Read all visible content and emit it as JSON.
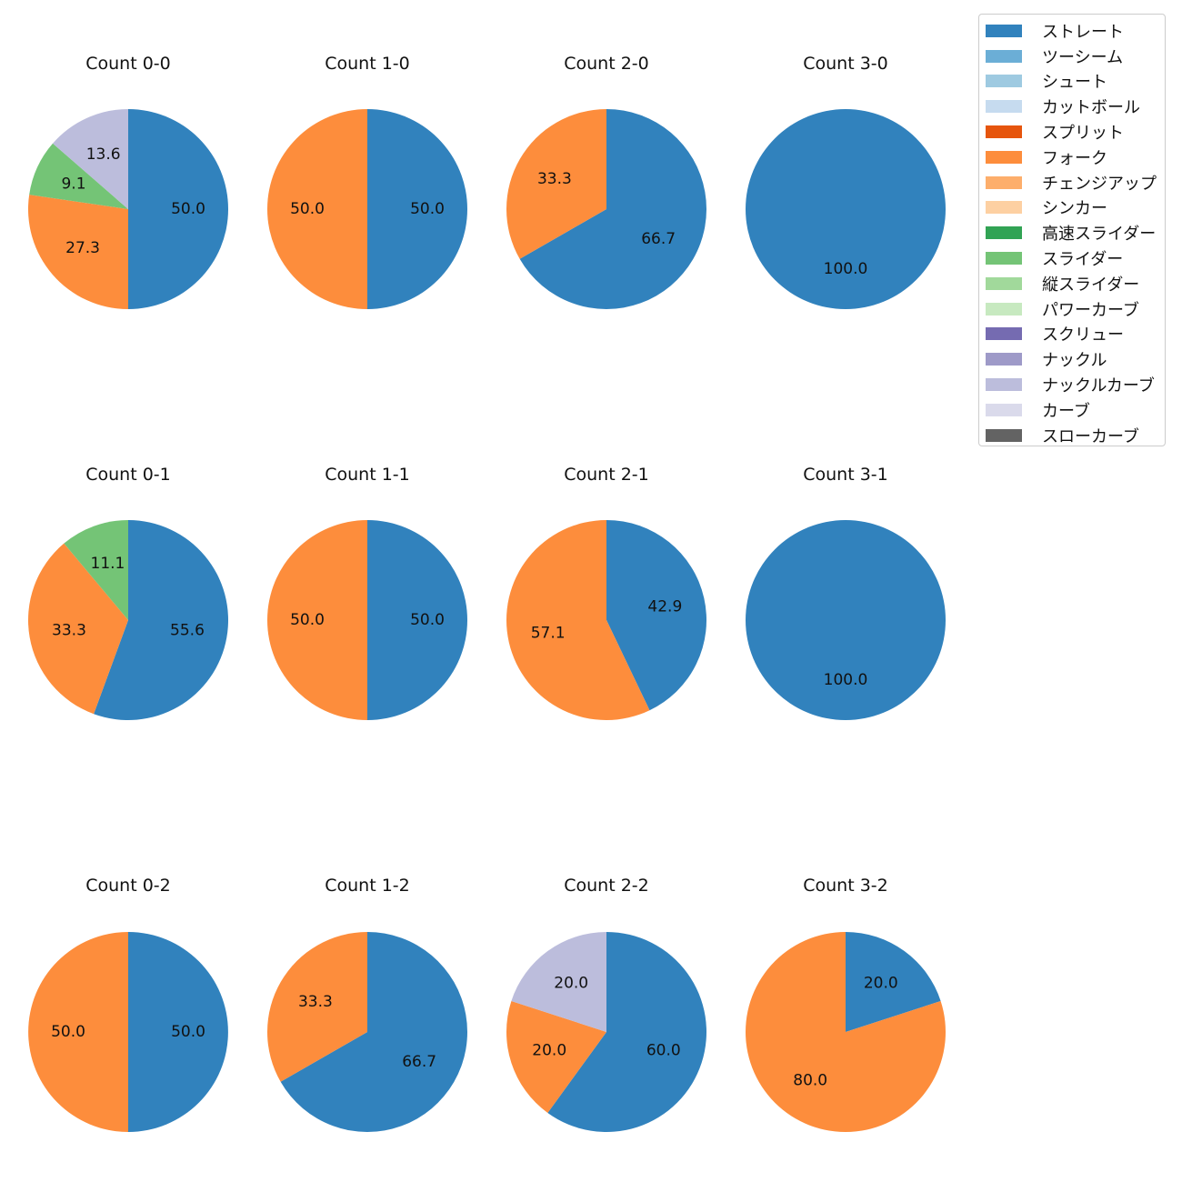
{
  "legend": {
    "items": [
      {
        "label": "ストレート",
        "color": "#3182bd"
      },
      {
        "label": "ツーシーム",
        "color": "#6baed6"
      },
      {
        "label": "シュート",
        "color": "#9ecae1"
      },
      {
        "label": "カットボール",
        "color": "#c6dbef"
      },
      {
        "label": "スプリット",
        "color": "#e6550d"
      },
      {
        "label": "フォーク",
        "color": "#fd8d3c"
      },
      {
        "label": "チェンジアップ",
        "color": "#fdae6b"
      },
      {
        "label": "シンカー",
        "color": "#fdd0a2"
      },
      {
        "label": "高速スライダー",
        "color": "#31a354"
      },
      {
        "label": "スライダー",
        "color": "#74c476"
      },
      {
        "label": "縦スライダー",
        "color": "#a1d99b"
      },
      {
        "label": "パワーカーブ",
        "color": "#c7e9c0"
      },
      {
        "label": "スクリュー",
        "color": "#756bb1"
      },
      {
        "label": "ナックル",
        "color": "#9e9ac8"
      },
      {
        "label": "ナックルカーブ",
        "color": "#bcbddc"
      },
      {
        "label": "カーブ",
        "color": "#dadaeb"
      },
      {
        "label": "スローカーブ",
        "color": "#636363"
      }
    ]
  },
  "chart_data": [
    {
      "type": "pie",
      "title": "Count 0-0",
      "slices": [
        {
          "category": "ストレート",
          "value": 50.0,
          "label": "50.0"
        },
        {
          "category": "フォーク",
          "value": 27.3,
          "label": "27.3"
        },
        {
          "category": "スライダー",
          "value": 9.1,
          "label": "9.1"
        },
        {
          "category": "ナックルカーブ",
          "value": 13.6,
          "label": "13.6"
        }
      ]
    },
    {
      "type": "pie",
      "title": "Count 1-0",
      "slices": [
        {
          "category": "ストレート",
          "value": 50.0,
          "label": "50.0"
        },
        {
          "category": "フォーク",
          "value": 50.0,
          "label": "50.0"
        }
      ]
    },
    {
      "type": "pie",
      "title": "Count 2-0",
      "slices": [
        {
          "category": "ストレート",
          "value": 66.7,
          "label": "66.7"
        },
        {
          "category": "フォーク",
          "value": 33.3,
          "label": "33.3"
        }
      ]
    },
    {
      "type": "pie",
      "title": "Count 3-0",
      "slices": [
        {
          "category": "ストレート",
          "value": 100.0,
          "label": "100.0"
        }
      ]
    },
    {
      "type": "pie",
      "title": "Count 0-1",
      "slices": [
        {
          "category": "ストレート",
          "value": 55.6,
          "label": "55.6"
        },
        {
          "category": "フォーク",
          "value": 33.3,
          "label": "33.3"
        },
        {
          "category": "スライダー",
          "value": 11.1,
          "label": "11.1"
        }
      ]
    },
    {
      "type": "pie",
      "title": "Count 1-1",
      "slices": [
        {
          "category": "ストレート",
          "value": 50.0,
          "label": "50.0"
        },
        {
          "category": "フォーク",
          "value": 50.0,
          "label": "50.0"
        }
      ]
    },
    {
      "type": "pie",
      "title": "Count 2-1",
      "slices": [
        {
          "category": "ストレート",
          "value": 42.9,
          "label": "42.9"
        },
        {
          "category": "フォーク",
          "value": 57.1,
          "label": "57.1"
        }
      ]
    },
    {
      "type": "pie",
      "title": "Count 3-1",
      "slices": [
        {
          "category": "ストレート",
          "value": 100.0,
          "label": "100.0"
        }
      ]
    },
    {
      "type": "pie",
      "title": "Count 0-2",
      "slices": [
        {
          "category": "ストレート",
          "value": 50.0,
          "label": "50.0"
        },
        {
          "category": "フォーク",
          "value": 50.0,
          "label": "50.0"
        }
      ]
    },
    {
      "type": "pie",
      "title": "Count 1-2",
      "slices": [
        {
          "category": "ストレート",
          "value": 66.7,
          "label": "66.7"
        },
        {
          "category": "フォーク",
          "value": 33.3,
          "label": "33.3"
        }
      ]
    },
    {
      "type": "pie",
      "title": "Count 2-2",
      "slices": [
        {
          "category": "ストレート",
          "value": 60.0,
          "label": "60.0"
        },
        {
          "category": "フォーク",
          "value": 20.0,
          "label": "20.0"
        },
        {
          "category": "ナックルカーブ",
          "value": 20.0,
          "label": "20.0"
        }
      ]
    },
    {
      "type": "pie",
      "title": "Count 3-2",
      "slices": [
        {
          "category": "ストレート",
          "value": 20.0,
          "label": "20.0"
        },
        {
          "category": "フォーク",
          "value": 80.0,
          "label": "80.0"
        }
      ]
    }
  ]
}
